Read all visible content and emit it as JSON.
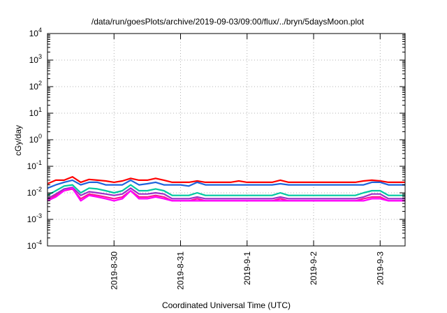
{
  "chart_data": {
    "type": "line",
    "title": "/data/run/goesPlots/archive/2019-09-03/09:00/flux/../bryn/5daysMoon.plot",
    "xlabel": "Coordinated Universal Time (UTC)",
    "ylabel": "cGy/day",
    "yscale": "log",
    "ylim": [
      0.0001,
      10000
    ],
    "y_ticks": [
      {
        "value": 0.0001,
        "base": "10",
        "exp": "-4"
      },
      {
        "value": 0.001,
        "base": "10",
        "exp": "-3"
      },
      {
        "value": 0.01,
        "base": "10",
        "exp": "-2"
      },
      {
        "value": 0.1,
        "base": "10",
        "exp": "-1"
      },
      {
        "value": 1,
        "base": "10",
        "exp": "0"
      },
      {
        "value": 10,
        "base": "10",
        "exp": "1"
      },
      {
        "value": 100,
        "base": "10",
        "exp": "2"
      },
      {
        "value": 1000,
        "base": "10",
        "exp": "3"
      },
      {
        "value": 10000,
        "base": "10",
        "exp": "4"
      }
    ],
    "xlim": [
      "2019-08-29 00:00",
      "2019-09-03 09:00"
    ],
    "x_ticks": [
      {
        "time": "2019-08-30 00:00",
        "label": "2019-8-30"
      },
      {
        "time": "2019-08-31 00:00",
        "label": "2019-8-31"
      },
      {
        "time": "2019-09-01 00:00",
        "label": "2019-9-1"
      },
      {
        "time": "2019-09-02 00:00",
        "label": "2019-9-2"
      },
      {
        "time": "2019-09-03 00:00",
        "label": "2019-9-3"
      }
    ],
    "grid": true,
    "x": [
      "2019-08-29 00:00",
      "2019-08-29 03:00",
      "2019-08-29 06:00",
      "2019-08-29 09:00",
      "2019-08-29 12:00",
      "2019-08-29 15:00",
      "2019-08-29 18:00",
      "2019-08-29 21:00",
      "2019-08-30 00:00",
      "2019-08-30 03:00",
      "2019-08-30 06:00",
      "2019-08-30 09:00",
      "2019-08-30 12:00",
      "2019-08-30 15:00",
      "2019-08-30 18:00",
      "2019-08-30 21:00",
      "2019-08-31 00:00",
      "2019-08-31 03:00",
      "2019-08-31 06:00",
      "2019-08-31 09:00",
      "2019-08-31 12:00",
      "2019-08-31 15:00",
      "2019-08-31 18:00",
      "2019-08-31 21:00",
      "2019-09-01 00:00",
      "2019-09-01 03:00",
      "2019-09-01 06:00",
      "2019-09-01 09:00",
      "2019-09-01 12:00",
      "2019-09-01 15:00",
      "2019-09-01 18:00",
      "2019-09-01 21:00",
      "2019-09-02 00:00",
      "2019-09-02 03:00",
      "2019-09-02 06:00",
      "2019-09-02 09:00",
      "2019-09-02 12:00",
      "2019-09-02 15:00",
      "2019-09-02 18:00",
      "2019-09-02 21:00",
      "2019-09-03 00:00",
      "2019-09-03 03:00",
      "2019-09-03 06:00",
      "2019-09-03 09:00"
    ],
    "series": [
      {
        "color": "#ff0000",
        "values": [
          0.022,
          0.03,
          0.03,
          0.04,
          0.025,
          0.032,
          0.03,
          0.028,
          0.025,
          0.028,
          0.035,
          0.03,
          0.03,
          0.035,
          0.03,
          0.025,
          0.025,
          0.025,
          0.028,
          0.025,
          0.025,
          0.025,
          0.025,
          0.028,
          0.025,
          0.025,
          0.025,
          0.025,
          0.03,
          0.025,
          0.025,
          0.025,
          0.025,
          0.025,
          0.025,
          0.025,
          0.025,
          0.025,
          0.028,
          0.03,
          0.028,
          0.025,
          0.025,
          0.025
        ]
      },
      {
        "color": "#1e64dc",
        "values": [
          0.015,
          0.02,
          0.025,
          0.03,
          0.02,
          0.025,
          0.025,
          0.02,
          0.02,
          0.02,
          0.03,
          0.02,
          0.022,
          0.025,
          0.02,
          0.02,
          0.02,
          0.018,
          0.025,
          0.02,
          0.02,
          0.02,
          0.02,
          0.02,
          0.02,
          0.02,
          0.02,
          0.02,
          0.022,
          0.02,
          0.02,
          0.02,
          0.02,
          0.02,
          0.02,
          0.02,
          0.02,
          0.02,
          0.02,
          0.025,
          0.025,
          0.02,
          0.02,
          0.02
        ]
      },
      {
        "color": "#00c8a0",
        "values": [
          0.008,
          0.012,
          0.018,
          0.02,
          0.01,
          0.015,
          0.014,
          0.012,
          0.01,
          0.012,
          0.02,
          0.012,
          0.012,
          0.014,
          0.012,
          0.008,
          0.008,
          0.008,
          0.01,
          0.008,
          0.008,
          0.008,
          0.008,
          0.008,
          0.008,
          0.008,
          0.008,
          0.008,
          0.01,
          0.008,
          0.008,
          0.008,
          0.008,
          0.008,
          0.008,
          0.008,
          0.008,
          0.008,
          0.01,
          0.012,
          0.012,
          0.008,
          0.008,
          0.008
        ]
      },
      {
        "color": "#9b30c8",
        "values": [
          0.006,
          0.009,
          0.014,
          0.016,
          0.008,
          0.011,
          0.01,
          0.009,
          0.008,
          0.009,
          0.015,
          0.009,
          0.009,
          0.01,
          0.009,
          0.006,
          0.006,
          0.006,
          0.007,
          0.006,
          0.006,
          0.006,
          0.006,
          0.006,
          0.006,
          0.006,
          0.006,
          0.006,
          0.007,
          0.006,
          0.006,
          0.006,
          0.006,
          0.006,
          0.006,
          0.006,
          0.006,
          0.006,
          0.007,
          0.009,
          0.009,
          0.006,
          0.006,
          0.006
        ]
      },
      {
        "color": "#ff1493",
        "values": [
          0.005,
          0.008,
          0.012,
          0.014,
          0.006,
          0.009,
          0.008,
          0.007,
          0.006,
          0.007,
          0.012,
          0.007,
          0.007,
          0.008,
          0.007,
          0.005,
          0.005,
          0.005,
          0.006,
          0.005,
          0.005,
          0.005,
          0.005,
          0.005,
          0.005,
          0.005,
          0.005,
          0.005,
          0.006,
          0.005,
          0.005,
          0.005,
          0.005,
          0.005,
          0.005,
          0.005,
          0.005,
          0.005,
          0.006,
          0.007,
          0.007,
          0.005,
          0.005,
          0.005
        ]
      },
      {
        "color": "#ff00ff",
        "values": [
          0.005,
          0.007,
          0.012,
          0.015,
          0.005,
          0.008,
          0.007,
          0.006,
          0.005,
          0.006,
          0.012,
          0.006,
          0.006,
          0.007,
          0.006,
          0.005,
          0.005,
          0.005,
          0.005,
          0.005,
          0.005,
          0.005,
          0.005,
          0.005,
          0.005,
          0.005,
          0.005,
          0.005,
          0.005,
          0.005,
          0.005,
          0.005,
          0.005,
          0.005,
          0.005,
          0.005,
          0.005,
          0.005,
          0.005,
          0.006,
          0.006,
          0.005,
          0.005,
          0.005
        ]
      }
    ]
  }
}
